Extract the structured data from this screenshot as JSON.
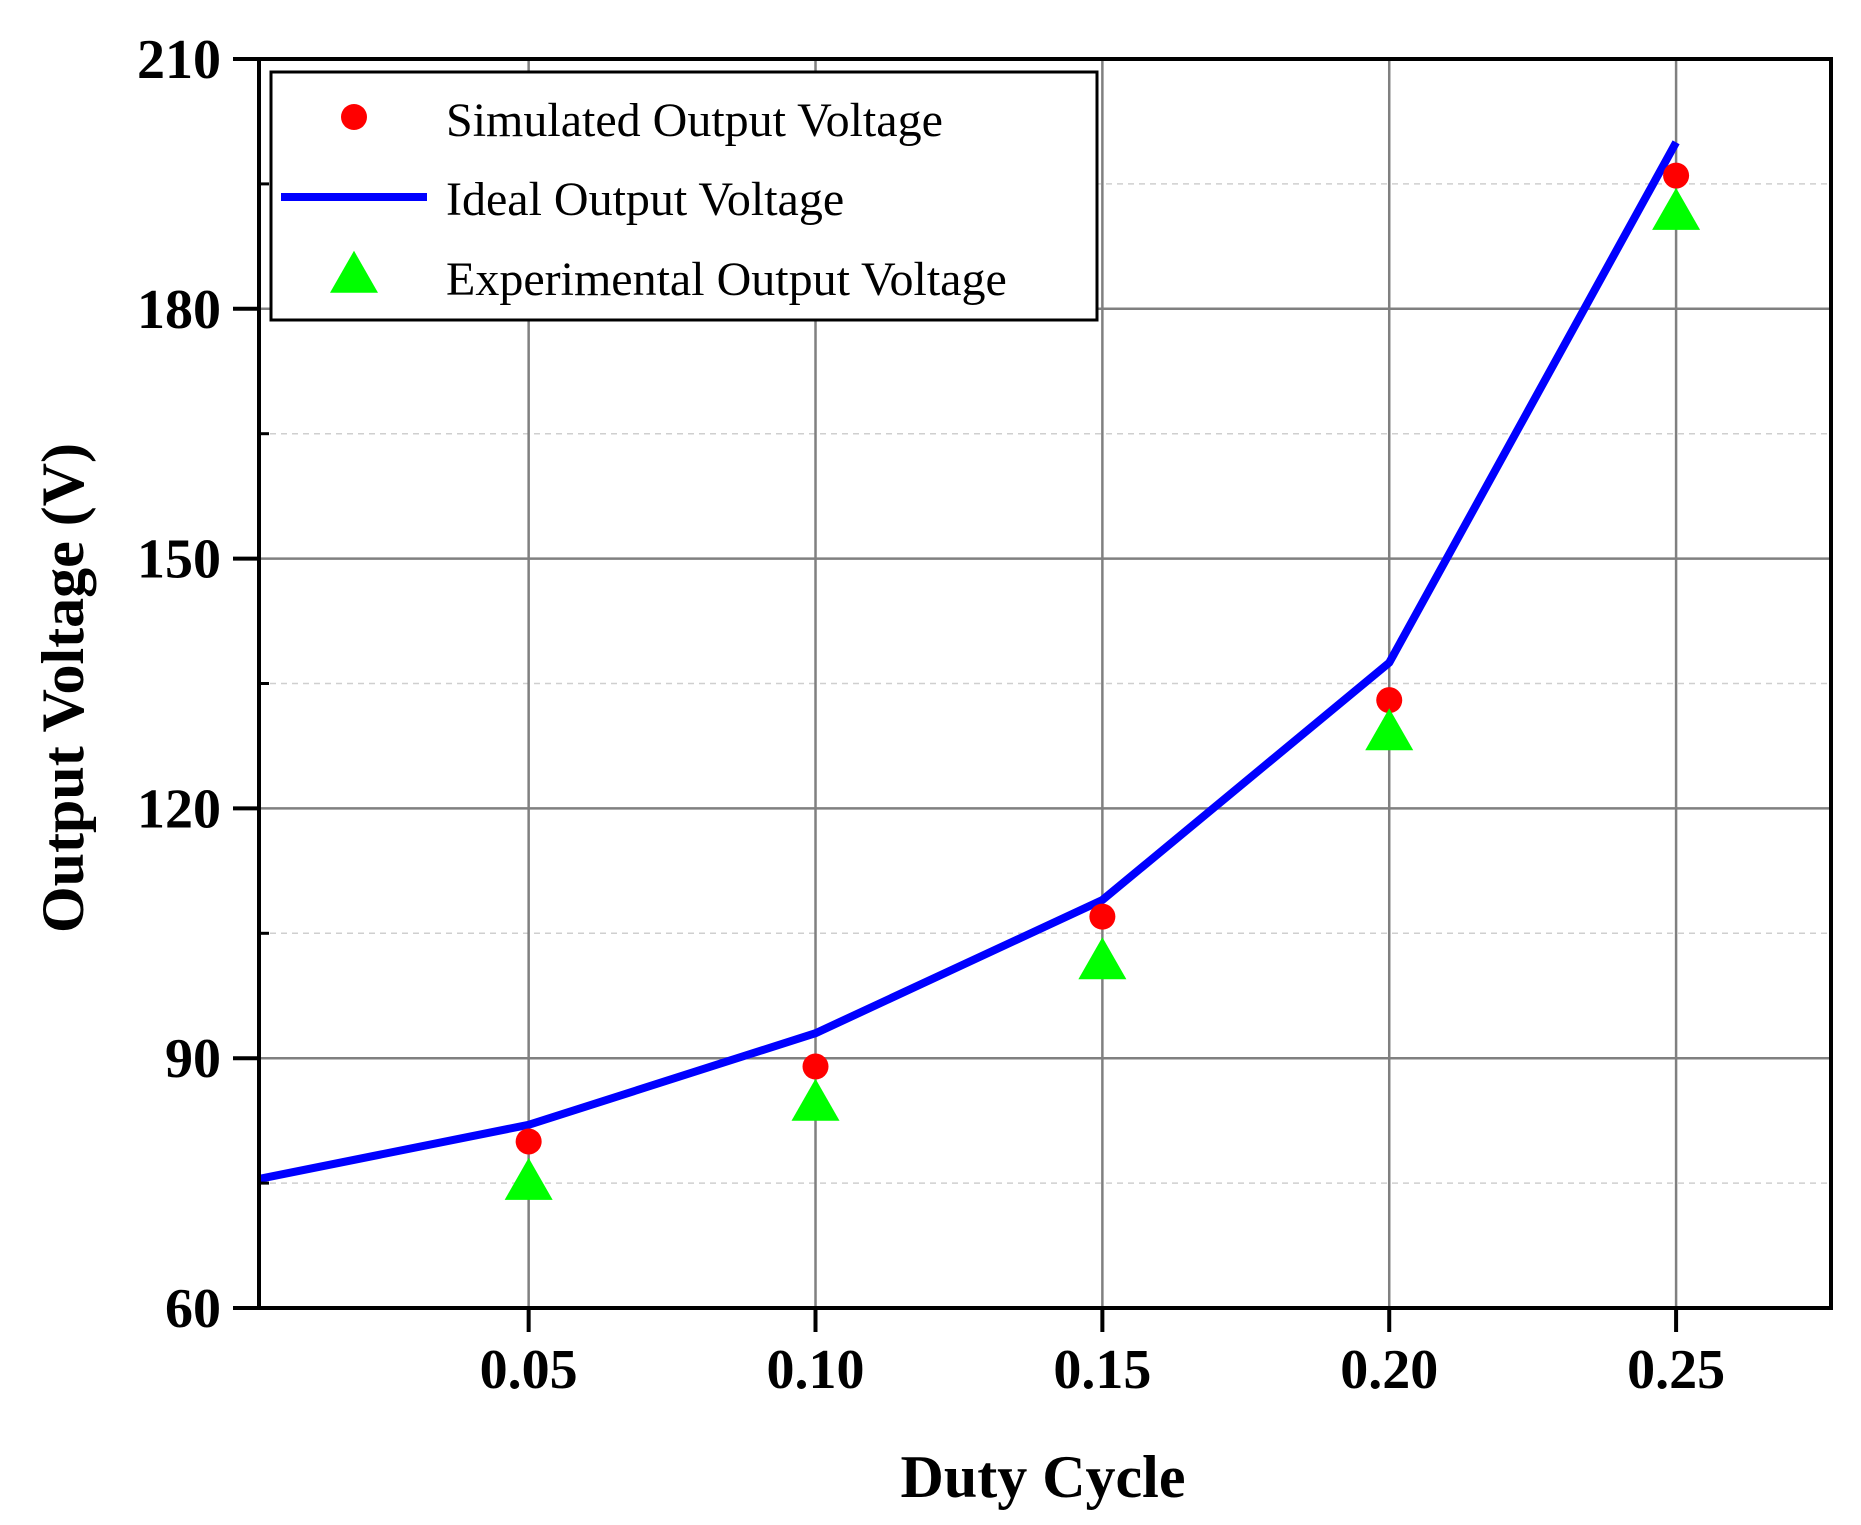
{
  "chart_data": {
    "type": "line",
    "title": "",
    "xlabel": "Duty Cycle",
    "ylabel": "Output Voltage (V)",
    "xlim": [
      0.003,
      0.277
    ],
    "ylim": [
      60,
      210
    ],
    "x_ticks": [
      0.05,
      0.1,
      0.15,
      0.2,
      0.25
    ],
    "x_tick_labels": [
      "0.05",
      "0.10",
      "0.15",
      "0.20",
      "0.25"
    ],
    "y_ticks": [
      60,
      90,
      120,
      150,
      180,
      210
    ],
    "y_tick_labels": [
      "60",
      "90",
      "120",
      "150",
      "180",
      "210"
    ],
    "grid": true,
    "legend_position": "top-left",
    "series": [
      {
        "name": "Simulated Output Voltage",
        "kind": "scatter",
        "marker": "circle",
        "color": "#ff0000",
        "x": [
          0.05,
          0.1,
          0.15,
          0.2,
          0.25
        ],
        "y": [
          80,
          89,
          107,
          133,
          196
        ]
      },
      {
        "name": "Ideal Output Voltage",
        "kind": "line",
        "color": "#0000ff",
        "x": [
          0.003,
          0.05,
          0.1,
          0.15,
          0.2,
          0.25
        ],
        "y": [
          75.5,
          82,
          93,
          109,
          137.5,
          200
        ]
      },
      {
        "name": "Experimental Output Voltage",
        "kind": "scatter",
        "marker": "triangle",
        "color": "#00ff00",
        "x": [
          0.05,
          0.1,
          0.15,
          0.2,
          0.25
        ],
        "y": [
          75,
          84.5,
          101.5,
          129,
          191.5
        ]
      }
    ]
  }
}
